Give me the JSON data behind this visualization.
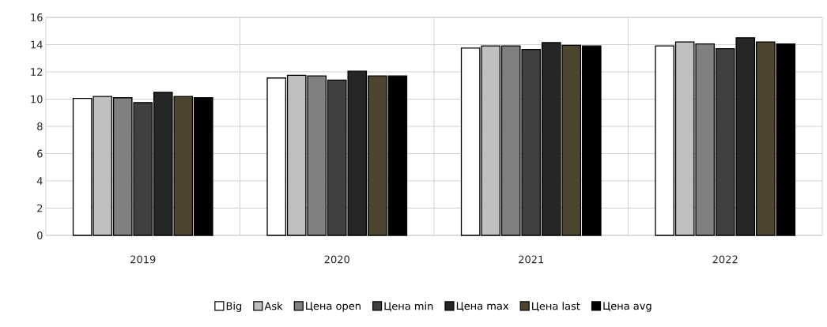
{
  "chart_data": {
    "type": "bar",
    "categories": [
      "2019",
      "2020",
      "2021",
      "2022"
    ],
    "series": [
      {
        "name": "Big",
        "color": "#ffffff",
        "values": [
          10.05,
          11.55,
          13.75,
          13.9
        ]
      },
      {
        "name": "Ask",
        "color": "#bfbfbf",
        "values": [
          10.2,
          11.75,
          13.9,
          14.2
        ]
      },
      {
        "name": "Цена open",
        "color": "#808080",
        "values": [
          10.1,
          11.7,
          13.9,
          14.05
        ]
      },
      {
        "name": "Цена min",
        "color": "#404040",
        "values": [
          9.75,
          11.4,
          13.65,
          13.7
        ]
      },
      {
        "name": "Цена max",
        "color": "#262626",
        "values": [
          10.5,
          12.05,
          14.15,
          14.5
        ]
      },
      {
        "name": "Цена last",
        "color": "#4d4530",
        "values": [
          10.2,
          11.7,
          13.95,
          14.2
        ]
      },
      {
        "name": "Цена avg",
        "color": "#000000",
        "values": [
          10.1,
          11.7,
          13.9,
          14.05
        ]
      }
    ],
    "ylim": [
      0,
      16
    ],
    "yticks": [
      0,
      2,
      4,
      6,
      8,
      10,
      12,
      14,
      16
    ],
    "grid": true,
    "legend": "bottom"
  }
}
